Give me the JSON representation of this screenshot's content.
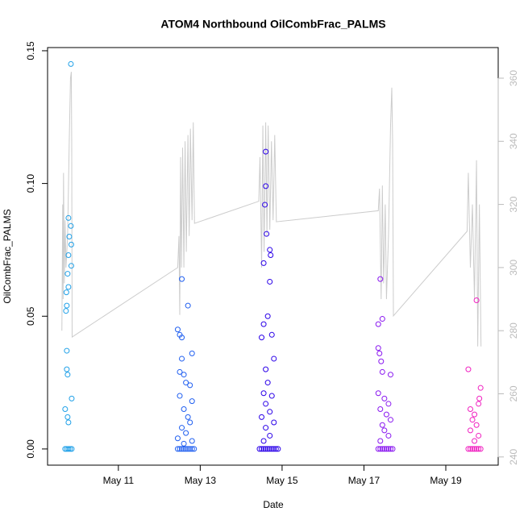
{
  "chart_data": {
    "type": "scatter",
    "title": "ATOM4 Northbound OilCombFrac_PALMS",
    "xlabel": "Date",
    "ylabel": "OilCombFrac_PALMS",
    "xlim": [
      9.27,
      20.28
    ],
    "ylim": [
      -0.0061,
      0.1512
    ],
    "y2lim": [
      237.4,
      369.7
    ],
    "xticks": [
      {
        "value": 11,
        "label": "May 11"
      },
      {
        "value": 13,
        "label": "May 13"
      },
      {
        "value": 15,
        "label": "May 15"
      },
      {
        "value": 17,
        "label": "May 17"
      },
      {
        "value": 19,
        "label": "May 19"
      }
    ],
    "yticks": [
      {
        "value": 0,
        "label": "0.00"
      },
      {
        "value": 0.05,
        "label": "0.05"
      },
      {
        "value": 0.1,
        "label": "0.10"
      },
      {
        "value": 0.15,
        "label": "0.15"
      }
    ],
    "y2ticks": [
      240,
      260,
      280,
      300,
      320,
      340,
      360
    ],
    "series": [
      {
        "color": "#1fa0e8",
        "x": [
          9.84,
          9.78,
          9.84,
          9.8,
          9.85,
          9.78,
          9.85,
          9.76,
          9.78,
          9.73,
          9.74,
          9.72,
          9.74,
          9.74,
          9.76,
          9.86,
          9.7,
          9.76,
          9.78,
          9.7,
          9.74,
          9.78,
          9.82,
          9.86
        ],
        "values": [
          0.145,
          0.087,
          0.084,
          0.08,
          0.077,
          0.073,
          0.069,
          0.066,
          0.061,
          0.059,
          0.054,
          0.052,
          0.037,
          0.03,
          0.028,
          0.019,
          0.015,
          0.012,
          0.01,
          0,
          0,
          0,
          0,
          0
        ]
      },
      {
        "color": "#1f5ef0",
        "x": [
          12.55,
          12.7,
          12.45,
          12.5,
          12.55,
          12.8,
          12.55,
          12.5,
          12.6,
          12.65,
          12.75,
          12.5,
          12.8,
          12.6,
          12.7,
          12.75,
          12.55,
          12.65,
          12.45,
          12.8,
          12.6,
          12.45,
          12.5,
          12.55,
          12.6,
          12.65,
          12.7,
          12.75,
          12.8,
          12.85
        ],
        "values": [
          0.064,
          0.054,
          0.045,
          0.043,
          0.042,
          0.036,
          0.034,
          0.029,
          0.028,
          0.025,
          0.024,
          0.02,
          0.018,
          0.015,
          0.012,
          0.01,
          0.008,
          0.006,
          0.004,
          0.003,
          0.002,
          0,
          0,
          0,
          0,
          0,
          0,
          0,
          0,
          0
        ]
      },
      {
        "color": "#2a00e8",
        "x": [
          14.6,
          14.6,
          14.58,
          14.62,
          14.7,
          14.72,
          14.55,
          14.7,
          14.65,
          14.55,
          14.75,
          14.5,
          14.8,
          14.6,
          14.65,
          14.55,
          14.75,
          14.6,
          14.7,
          14.5,
          14.8,
          14.6,
          14.7,
          14.55,
          14.45,
          14.5,
          14.55,
          14.6,
          14.65,
          14.7,
          14.75,
          14.8,
          14.85,
          14.9
        ],
        "values": [
          0.112,
          0.099,
          0.092,
          0.081,
          0.075,
          0.073,
          0.07,
          0.063,
          0.05,
          0.047,
          0.043,
          0.042,
          0.034,
          0.03,
          0.025,
          0.021,
          0.02,
          0.017,
          0.014,
          0.012,
          0.01,
          0.008,
          0.005,
          0.003,
          0,
          0,
          0,
          0,
          0,
          0,
          0,
          0,
          0,
          0
        ]
      },
      {
        "color": "#8a18f0",
        "x": [
          17.4,
          17.45,
          17.35,
          17.35,
          17.38,
          17.42,
          17.45,
          17.65,
          17.35,
          17.5,
          17.6,
          17.4,
          17.55,
          17.65,
          17.45,
          17.5,
          17.6,
          17.4,
          17.35,
          17.4,
          17.45,
          17.5,
          17.55,
          17.6,
          17.65,
          17.7
        ],
        "values": [
          0.064,
          0.049,
          0.047,
          0.038,
          0.036,
          0.033,
          0.029,
          0.028,
          0.021,
          0.019,
          0.017,
          0.015,
          0.013,
          0.011,
          0.009,
          0.007,
          0.005,
          0.003,
          0,
          0,
          0,
          0,
          0,
          0,
          0,
          0
        ]
      },
      {
        "color": "#f020c0",
        "x": [
          19.75,
          19.55,
          19.85,
          19.82,
          19.8,
          19.6,
          19.7,
          19.65,
          19.75,
          19.6,
          19.8,
          19.7,
          19.55,
          19.6,
          19.65,
          19.7,
          19.75,
          19.8,
          19.85
        ],
        "values": [
          0.056,
          0.03,
          0.023,
          0.019,
          0.017,
          0.015,
          0.013,
          0.011,
          0.009,
          0.007,
          0.005,
          0.003,
          0,
          0,
          0,
          0,
          0,
          0,
          0
        ]
      },
      {
        "type": "line",
        "axis": "y2",
        "color": "#cccccc",
        "x": [
          9.62,
          9.64,
          9.65,
          9.66,
          9.68,
          9.7,
          9.72,
          9.76,
          9.8,
          9.83,
          9.85,
          9.86,
          9.87,
          12.45,
          12.48,
          12.5,
          12.52,
          12.54,
          12.57,
          12.6,
          12.63,
          12.66,
          12.7,
          12.73,
          12.76,
          12.8,
          12.83,
          12.86,
          14.43,
          14.46,
          14.5,
          14.53,
          14.56,
          14.6,
          14.63,
          14.66,
          14.7,
          14.74,
          14.78,
          14.82,
          14.86,
          17.35,
          17.38,
          17.42,
          17.45,
          17.48,
          17.52,
          17.55,
          17.6,
          17.65,
          17.68,
          17.7,
          17.72,
          19.52,
          19.55,
          19.6,
          19.65,
          19.7,
          19.75,
          19.78,
          19.82,
          19.86
        ],
        "values": [
          280,
          320,
          290,
          330,
          295,
          315,
          300,
          310,
          340,
          360,
          362,
          340,
          278,
          300,
          310,
          285,
          335,
          300,
          338,
          300,
          340,
          305,
          342,
          310,
          344,
          315,
          346,
          314,
          321,
          335,
          300,
          345,
          305,
          346,
          310,
          345,
          312,
          340,
          315,
          342,
          314.5,
          318,
          325,
          290,
          326,
          295,
          320,
          290,
          310,
          345,
          357,
          340,
          284.7,
          311.5,
          330,
          300,
          320,
          290,
          334,
          275,
          320,
          275
        ]
      }
    ]
  }
}
